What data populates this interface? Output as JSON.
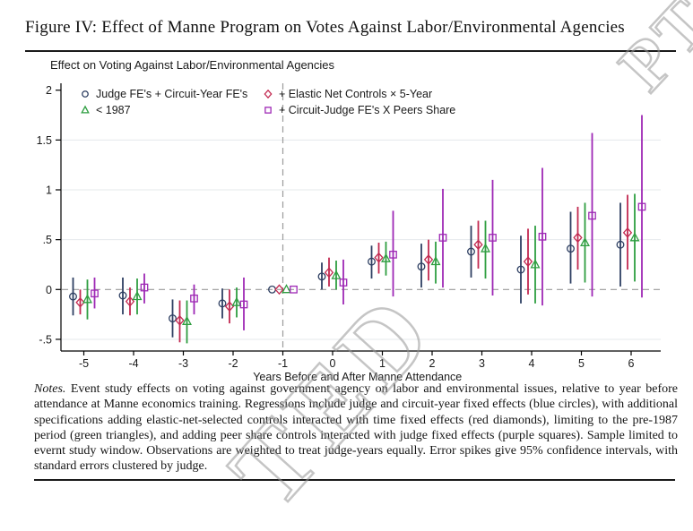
{
  "figure": {
    "title": "Figure IV: Effect of Manne Program on Votes Against Labor/Environmental Agencies"
  },
  "chart_data": {
    "type": "scatter",
    "subtype": "event-study with 95% CI error spikes",
    "title": "Effect on Voting Against Labor/Environmental Agencies",
    "xlabel": "Years Before and After Manne Attendance",
    "x": [
      -5,
      -4,
      -3,
      -2,
      -1,
      0,
      1,
      2,
      3,
      4,
      5,
      6
    ],
    "x_tick_labels": [
      "-5",
      "-4",
      "-3",
      "-2",
      "-1",
      "0",
      "1",
      "2",
      "3",
      "4",
      "5",
      "6"
    ],
    "y_ticks": [
      2,
      1.5,
      1,
      0.5,
      0,
      -0.5
    ],
    "y_tick_labels": [
      "2",
      "1.5",
      "1",
      ".5",
      "0",
      "-.5"
    ],
    "ylim": [
      -0.62,
      2.05
    ],
    "grid": "horizontal-light",
    "zero_line": "dashed-gray",
    "reference_line_x": -1,
    "reference_year": -1,
    "legend_position": "top-inside-two-columns",
    "legend_columns": [
      [
        0,
        2
      ],
      [
        1,
        3
      ]
    ],
    "series": [
      {
        "name": "Judge FE's + Circuit-Year FE's",
        "marker": "circle",
        "color": "#2e3f62",
        "estimates": [
          -0.07,
          -0.06,
          -0.29,
          -0.14,
          0,
          0.13,
          0.28,
          0.23,
          0.38,
          0.2,
          0.41,
          0.45
        ],
        "ci_low": [
          -0.26,
          -0.25,
          -0.48,
          -0.29,
          null,
          0.0,
          0.11,
          0.02,
          0.12,
          -0.14,
          0.06,
          0.03
        ],
        "ci_high": [
          0.12,
          0.12,
          -0.1,
          0.01,
          null,
          0.27,
          0.44,
          0.46,
          0.64,
          0.54,
          0.78,
          0.87
        ]
      },
      {
        "name": "+ Elastic Net Controls × 5-Year",
        "marker": "diamond",
        "color": "#c22950",
        "estimates": [
          -0.13,
          -0.12,
          -0.31,
          -0.17,
          0,
          0.17,
          0.32,
          0.3,
          0.45,
          0.28,
          0.52,
          0.57
        ],
        "ci_low": [
          -0.25,
          -0.26,
          -0.53,
          -0.34,
          null,
          0.03,
          0.16,
          0.09,
          0.21,
          -0.05,
          0.2,
          0.2
        ],
        "ci_high": [
          0.0,
          0.02,
          -0.11,
          0.0,
          null,
          0.32,
          0.47,
          0.5,
          0.69,
          0.61,
          0.83,
          0.95
        ]
      },
      {
        "name": "< 1987",
        "marker": "triangle",
        "color": "#2e9e40",
        "estimates": [
          -0.1,
          -0.07,
          -0.32,
          -0.13,
          0,
          0.14,
          0.31,
          0.28,
          0.41,
          0.25,
          0.47,
          0.52
        ],
        "ci_low": [
          -0.3,
          -0.25,
          -0.54,
          -0.28,
          null,
          0.0,
          0.14,
          0.06,
          0.11,
          -0.14,
          0.07,
          0.08
        ],
        "ci_high": [
          0.1,
          0.11,
          -0.11,
          0.02,
          null,
          0.29,
          0.48,
          0.48,
          0.69,
          0.64,
          0.87,
          0.96
        ]
      },
      {
        "name": "+ Circuit-Judge FE's X Peers Share",
        "marker": "square",
        "color": "#9e28b5",
        "estimates": [
          -0.04,
          0.02,
          -0.09,
          -0.15,
          0,
          0.07,
          0.35,
          0.52,
          0.52,
          0.53,
          0.74,
          0.83
        ],
        "ci_low": [
          -0.19,
          -0.14,
          -0.25,
          -0.41,
          null,
          -0.15,
          -0.07,
          0.02,
          -0.06,
          -0.16,
          -0.07,
          -0.08
        ],
        "ci_high": [
          0.12,
          0.16,
          0.05,
          0.12,
          null,
          0.3,
          0.79,
          1.01,
          1.1,
          1.22,
          1.57,
          1.75
        ]
      }
    ]
  },
  "notes": {
    "label": "Notes.",
    "body": " Event study effects on voting against government agency on labor and environmental issues, relative to year before attendance at Manne economics training. Regressions include judge and circuit-year fixed effects (blue circles), with additional specifications adding elastic-net-selected controls interacted with time fixed effects (red diamonds), limiting to the pre-1987 period (green triangles), and adding peer share controls interacted with judge fixed effects (purple squares). Sample limited to evernt study window. Observations are weighted to treat judge-years equally. Error spikes give 95% confidence intervals, with standard errors clustered by judge."
  },
  "watermark": {
    "top_right": "PT",
    "bottom": "TED"
  },
  "colors": {
    "axis": "#000000",
    "tick_text": "#1a1a1a",
    "gridline": "#e5e8eb",
    "dashed_reference": "#9b9b9b"
  }
}
